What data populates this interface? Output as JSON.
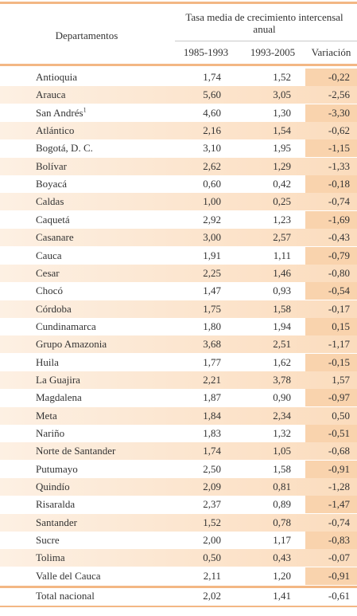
{
  "table": {
    "header": {
      "row_label": "Departamentos",
      "group": "Tasa media de crecimiento intercensal anual",
      "columns": [
        "1985-1993",
        "1993-2005",
        "Variación"
      ]
    },
    "rows": [
      {
        "name": "Antioquia",
        "values": [
          "1,74",
          "1,52",
          "-0,22"
        ]
      },
      {
        "name": "Arauca",
        "values": [
          "5,60",
          "3,05",
          "-2,56"
        ]
      },
      {
        "name": "San Andrés",
        "note": "1",
        "values": [
          "4,60",
          "1,30",
          "-3,30"
        ]
      },
      {
        "name": "Atlántico",
        "values": [
          "2,16",
          "1,54",
          "-0,62"
        ]
      },
      {
        "name": "Bogotá, D. C.",
        "values": [
          "3,10",
          "1,95",
          "-1,15"
        ]
      },
      {
        "name": "Bolívar",
        "values": [
          "2,62",
          "1,29",
          "-1,33"
        ]
      },
      {
        "name": "Boyacá",
        "values": [
          "0,60",
          "0,42",
          "-0,18"
        ]
      },
      {
        "name": "Caldas",
        "values": [
          "1,00",
          "0,25",
          "-0,74"
        ]
      },
      {
        "name": "Caquetá",
        "values": [
          "2,92",
          "1,23",
          "-1,69"
        ]
      },
      {
        "name": "Casanare",
        "values": [
          "3,00",
          "2,57",
          "-0,43"
        ]
      },
      {
        "name": "Cauca",
        "values": [
          "1,91",
          "1,11",
          "-0,79"
        ]
      },
      {
        "name": "Cesar",
        "values": [
          "2,25",
          "1,46",
          "-0,80"
        ]
      },
      {
        "name": "Chocó",
        "values": [
          "1,47",
          "0,93",
          "-0,54"
        ]
      },
      {
        "name": "Córdoba",
        "values": [
          "1,75",
          "1,58",
          "-0,17"
        ]
      },
      {
        "name": "Cundinamarca",
        "values": [
          "1,80",
          "1,94",
          "0,15"
        ]
      },
      {
        "name": "Grupo Amazonia",
        "values": [
          "3,68",
          "2,51",
          "-1,17"
        ]
      },
      {
        "name": "Huila",
        "values": [
          "1,77",
          "1,62",
          "-0,15"
        ]
      },
      {
        "name": "La Guajira",
        "values": [
          "2,21",
          "3,78",
          "1,57"
        ]
      },
      {
        "name": "Magdalena",
        "values": [
          "1,87",
          "0,90",
          "-0,97"
        ]
      },
      {
        "name": "Meta",
        "values": [
          "1,84",
          "2,34",
          "0,50"
        ]
      },
      {
        "name": "Nariño",
        "values": [
          "1,83",
          "1,32",
          "-0,51"
        ]
      },
      {
        "name": "Norte de Santander",
        "values": [
          "1,74",
          "1,05",
          "-0,68"
        ]
      },
      {
        "name": "Putumayo",
        "values": [
          "2,50",
          "1,58",
          "-0,91"
        ]
      },
      {
        "name": "Quindío",
        "values": [
          "2,09",
          "0,81",
          "-1,28"
        ]
      },
      {
        "name": "Risaralda",
        "values": [
          "2,37",
          "0,89",
          "-1,47"
        ]
      },
      {
        "name": "Santander",
        "values": [
          "1,52",
          "0,78",
          "-0,74"
        ]
      },
      {
        "name": "Sucre",
        "values": [
          "2,00",
          "1,17",
          "-0,83"
        ]
      },
      {
        "name": "Tolima",
        "values": [
          "0,50",
          "0,43",
          "-0,07"
        ]
      },
      {
        "name": "Valle del Cauca",
        "values": [
          "2,11",
          "1,20",
          "-0,91"
        ]
      }
    ],
    "total": {
      "name": "Total nacional",
      "values": [
        "2,02",
        "1,41",
        "-0,61"
      ]
    }
  }
}
